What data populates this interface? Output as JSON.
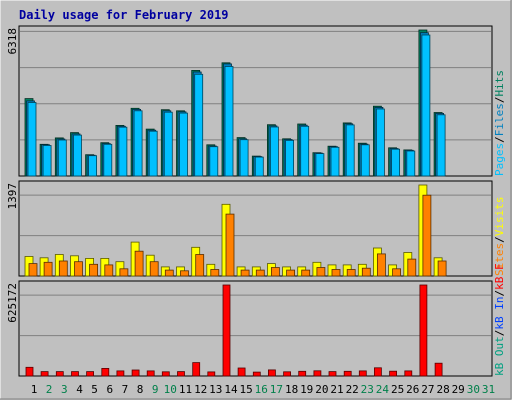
{
  "title": "Daily usage for February 2019",
  "colors": {
    "background": "#c0c0c0",
    "title": "#0000a0",
    "hits": "#00805f",
    "files": "#0080c0",
    "pages": "#00c0ff",
    "visits": "#ffff00",
    "sites": "#ff8000",
    "kb_in": "#0040ff",
    "kb_out": "#00a080",
    "kb_f": "#ff0000",
    "weekday_label": "#000000",
    "weekend_label": "#00804a"
  },
  "chart_data": [
    {
      "type": "bar",
      "panel": "hits",
      "max_label": "6318",
      "ylim": [
        0,
        6318
      ],
      "legend": [
        {
          "text": "Hits",
          "key": "hits"
        },
        {
          "text": "/",
          "key": null
        },
        {
          "text": "Files",
          "key": "files"
        },
        {
          "text": "/",
          "key": null
        },
        {
          "text": "Pages",
          "key": "pages"
        }
      ],
      "categories": [
        "1",
        "2",
        "3",
        "4",
        "5",
        "6",
        "7",
        "8",
        "9",
        "10",
        "11",
        "12",
        "13",
        "14",
        "15",
        "16",
        "17",
        "18",
        "19",
        "20",
        "21",
        "22",
        "23",
        "24",
        "25",
        "26",
        "27",
        "28",
        "29",
        "30",
        "31"
      ],
      "series": [
        {
          "name": "Hits",
          "color_key": "hits",
          "values": [
            3350,
            1370,
            1650,
            1880,
            920,
            1440,
            2190,
            2930,
            2030,
            2870,
            2820,
            4570,
            1350,
            4900,
            1660,
            860,
            2220,
            1610,
            2250,
            1010,
            1290,
            2300,
            1420,
            3020,
            1220,
            1130,
            6318,
            2750,
            0,
            0,
            0
          ]
        },
        {
          "name": "Files",
          "color_key": "files",
          "values": [
            3250,
            1350,
            1600,
            1820,
            900,
            1400,
            2150,
            2880,
            1980,
            2820,
            2780,
            4500,
            1300,
            4850,
            1610,
            840,
            2170,
            1580,
            2200,
            990,
            1270,
            2260,
            1380,
            2970,
            1190,
            1110,
            6200,
            2710,
            0,
            0,
            0
          ]
        },
        {
          "name": "Pages",
          "color_key": "pages",
          "values": [
            3180,
            1320,
            1560,
            1770,
            880,
            1370,
            2110,
            2820,
            1940,
            2760,
            2720,
            4400,
            1270,
            4740,
            1570,
            820,
            2120,
            1540,
            2150,
            970,
            1240,
            2210,
            1350,
            2900,
            1160,
            1080,
            6100,
            2650,
            0,
            0,
            0
          ]
        }
      ]
    },
    {
      "type": "bar",
      "panel": "visits",
      "max_label": "1397",
      "ylim": [
        0,
        1397
      ],
      "legend": [
        {
          "text": "Visits",
          "key": "visits"
        },
        {
          "text": "/",
          "key": null
        },
        {
          "text": "Sites",
          "key": "sites"
        }
      ],
      "categories": [
        "1",
        "2",
        "3",
        "4",
        "5",
        "6",
        "7",
        "8",
        "9",
        "10",
        "11",
        "12",
        "13",
        "14",
        "15",
        "16",
        "17",
        "18",
        "19",
        "20",
        "21",
        "22",
        "23",
        "24",
        "25",
        "26",
        "27",
        "28",
        "29",
        "30",
        "31"
      ],
      "series": [
        {
          "name": "Visits",
          "color_key": "visits",
          "values": [
            300,
            280,
            330,
            310,
            270,
            270,
            220,
            520,
            320,
            140,
            140,
            440,
            180,
            1100,
            140,
            140,
            190,
            140,
            140,
            210,
            170,
            170,
            180,
            430,
            170,
            360,
            1397,
            280,
            0,
            0,
            0
          ]
        },
        {
          "name": "Sites",
          "color_key": "sites",
          "values": [
            190,
            210,
            230,
            220,
            180,
            170,
            110,
            380,
            220,
            90,
            80,
            330,
            100,
            950,
            90,
            90,
            130,
            90,
            90,
            130,
            100,
            100,
            120,
            340,
            110,
            260,
            1240,
            230,
            0,
            0,
            0
          ]
        }
      ]
    },
    {
      "type": "bar",
      "panel": "kbytes",
      "max_label": "625172",
      "ylim": [
        0,
        625172
      ],
      "legend": [
        {
          "text": "KBytes",
          "key": "kb_f"
        },
        {
          "text": "/",
          "key": null
        },
        {
          "text": "KBytes In",
          "key": "kb_in"
        },
        {
          "text": "/",
          "key": null
        },
        {
          "text": "KBytes Out",
          "key": "kb_out"
        }
      ],
      "legend_display": [
        {
          "text": "kB F",
          "key": "kb_f"
        },
        {
          "text": "/",
          "key": null
        },
        {
          "text": "kB In",
          "key": "kb_in"
        },
        {
          "text": "/",
          "key": null
        },
        {
          "text": "kB Out",
          "key": "kb_out"
        }
      ],
      "categories": [
        "1",
        "2",
        "3",
        "4",
        "5",
        "6",
        "7",
        "8",
        "9",
        "10",
        "11",
        "12",
        "13",
        "14",
        "15",
        "16",
        "17",
        "18",
        "19",
        "20",
        "21",
        "22",
        "23",
        "24",
        "25",
        "26",
        "27",
        "28",
        "29",
        "30",
        "31"
      ],
      "series": [
        {
          "name": "kB F",
          "color_key": "kb_f",
          "values": [
            60000,
            30000,
            30000,
            30000,
            30000,
            52000,
            35000,
            41000,
            35000,
            29000,
            30000,
            92000,
            28000,
            625172,
            55000,
            27000,
            42000,
            29000,
            32000,
            36000,
            30000,
            32000,
            35000,
            56000,
            33000,
            35000,
            625172,
            88000,
            0,
            0,
            0
          ]
        }
      ]
    }
  ],
  "weekend_days": [
    2,
    3,
    9,
    10,
    16,
    17,
    23,
    24,
    30,
    31
  ]
}
